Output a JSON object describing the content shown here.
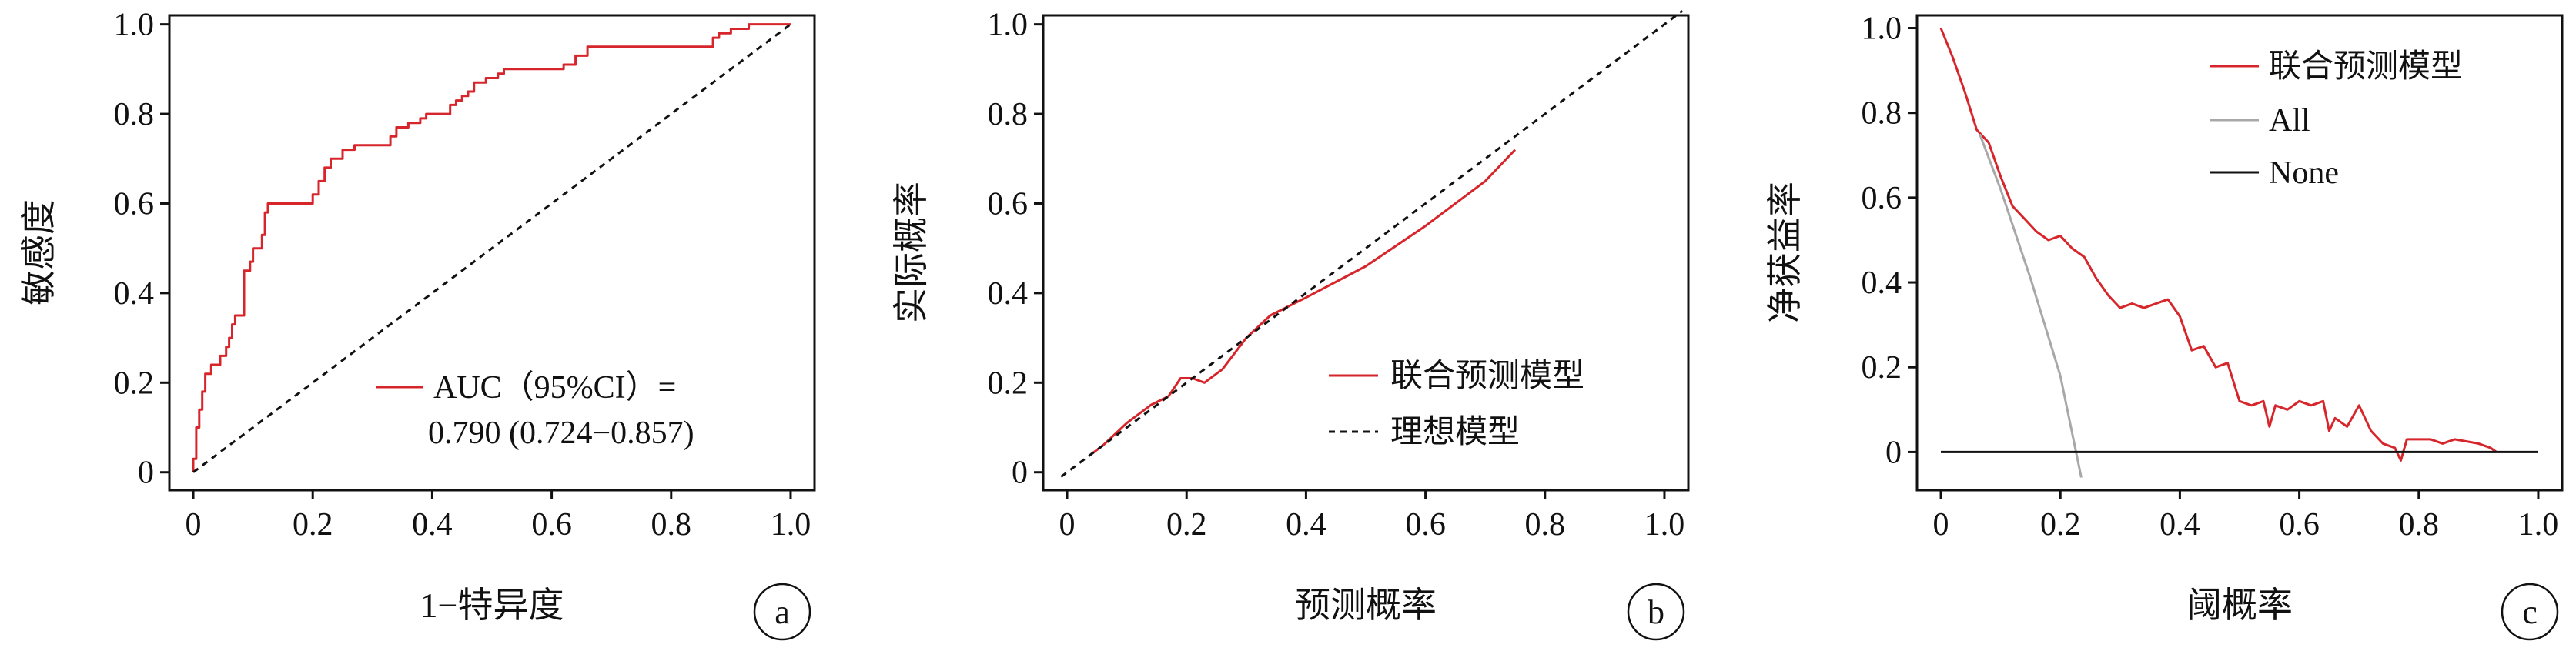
{
  "colors": {
    "model": "#d7262b",
    "all": "#a8a8a8",
    "none": "#111111",
    "ideal": "#111111",
    "axis": "#111111"
  },
  "chart_data": [
    {
      "panel_label": "a",
      "type": "line",
      "xlabel": "1−特异度",
      "ylabel": "敏感度",
      "xlim": [
        -0.04,
        1.04
      ],
      "ylim": [
        -0.04,
        1.02
      ],
      "xticks": [
        "0",
        "0.2",
        "0.4",
        "0.6",
        "0.8",
        "1.0"
      ],
      "xtick_values": [
        0,
        0.2,
        0.4,
        0.6,
        0.8,
        1.0
      ],
      "yticks": [
        "0",
        "0.2",
        "0.4",
        "0.6",
        "0.8",
        "1.0"
      ],
      "ytick_values": [
        0,
        0.2,
        0.4,
        0.6,
        0.8,
        1.0
      ],
      "grid": false,
      "legend": {
        "position": "bottom-right",
        "lines": [
          "AUC（95%CI）=",
          "0.790 (0.724−0.857)"
        ]
      },
      "series": [
        {
          "role": "model",
          "style": "step",
          "points": [
            [
              0,
              0
            ],
            [
              0,
              0.03
            ],
            [
              0.005,
              0.03
            ],
            [
              0.005,
              0.1
            ],
            [
              0.01,
              0.1
            ],
            [
              0.01,
              0.14
            ],
            [
              0.015,
              0.14
            ],
            [
              0.015,
              0.18
            ],
            [
              0.02,
              0.18
            ],
            [
              0.02,
              0.22
            ],
            [
              0.03,
              0.22
            ],
            [
              0.03,
              0.24
            ],
            [
              0.045,
              0.24
            ],
            [
              0.045,
              0.26
            ],
            [
              0.055,
              0.26
            ],
            [
              0.055,
              0.28
            ],
            [
              0.06,
              0.28
            ],
            [
              0.06,
              0.3
            ],
            [
              0.065,
              0.3
            ],
            [
              0.065,
              0.33
            ],
            [
              0.07,
              0.33
            ],
            [
              0.07,
              0.35
            ],
            [
              0.085,
              0.35
            ],
            [
              0.085,
              0.45
            ],
            [
              0.095,
              0.45
            ],
            [
              0.095,
              0.47
            ],
            [
              0.1,
              0.47
            ],
            [
              0.1,
              0.5
            ],
            [
              0.115,
              0.5
            ],
            [
              0.115,
              0.53
            ],
            [
              0.12,
              0.53
            ],
            [
              0.12,
              0.58
            ],
            [
              0.125,
              0.58
            ],
            [
              0.125,
              0.6
            ],
            [
              0.2,
              0.6
            ],
            [
              0.2,
              0.62
            ],
            [
              0.21,
              0.62
            ],
            [
              0.21,
              0.65
            ],
            [
              0.22,
              0.65
            ],
            [
              0.22,
              0.68
            ],
            [
              0.23,
              0.68
            ],
            [
              0.23,
              0.7
            ],
            [
              0.25,
              0.7
            ],
            [
              0.25,
              0.72
            ],
            [
              0.27,
              0.72
            ],
            [
              0.27,
              0.73
            ],
            [
              0.33,
              0.73
            ],
            [
              0.33,
              0.75
            ],
            [
              0.34,
              0.75
            ],
            [
              0.34,
              0.77
            ],
            [
              0.36,
              0.77
            ],
            [
              0.36,
              0.78
            ],
            [
              0.38,
              0.78
            ],
            [
              0.38,
              0.79
            ],
            [
              0.39,
              0.79
            ],
            [
              0.39,
              0.8
            ],
            [
              0.43,
              0.8
            ],
            [
              0.43,
              0.82
            ],
            [
              0.44,
              0.82
            ],
            [
              0.44,
              0.83
            ],
            [
              0.45,
              0.83
            ],
            [
              0.45,
              0.84
            ],
            [
              0.46,
              0.84
            ],
            [
              0.46,
              0.85
            ],
            [
              0.47,
              0.85
            ],
            [
              0.47,
              0.87
            ],
            [
              0.49,
              0.87
            ],
            [
              0.49,
              0.88
            ],
            [
              0.51,
              0.88
            ],
            [
              0.51,
              0.89
            ],
            [
              0.52,
              0.89
            ],
            [
              0.52,
              0.9
            ],
            [
              0.62,
              0.9
            ],
            [
              0.62,
              0.91
            ],
            [
              0.64,
              0.91
            ],
            [
              0.64,
              0.93
            ],
            [
              0.66,
              0.93
            ],
            [
              0.66,
              0.95
            ],
            [
              0.87,
              0.95
            ],
            [
              0.87,
              0.97
            ],
            [
              0.88,
              0.97
            ],
            [
              0.88,
              0.98
            ],
            [
              0.9,
              0.98
            ],
            [
              0.9,
              0.99
            ],
            [
              0.93,
              0.99
            ],
            [
              0.93,
              1.0
            ],
            [
              1.0,
              1.0
            ]
          ]
        },
        {
          "role": "ideal",
          "style": "dashed",
          "points": [
            [
              0,
              0
            ],
            [
              1,
              1
            ]
          ]
        }
      ]
    },
    {
      "panel_label": "b",
      "type": "line",
      "xlabel": "预测概率",
      "ylabel": "实际概率",
      "xlim": [
        -0.04,
        1.04
      ],
      "ylim": [
        -0.04,
        1.02
      ],
      "xticks": [
        "0",
        "0.2",
        "0.4",
        "0.6",
        "0.8",
        "1.0"
      ],
      "xtick_values": [
        0,
        0.2,
        0.4,
        0.6,
        0.8,
        1.0
      ],
      "yticks": [
        "0",
        "0.2",
        "0.4",
        "0.6",
        "0.8",
        "1.0"
      ],
      "ytick_values": [
        0,
        0.2,
        0.4,
        0.6,
        0.8,
        1.0
      ],
      "grid": false,
      "legend": {
        "position": "bottom-right"
      },
      "series": [
        {
          "name": "联合预测模型",
          "role": "model",
          "style": "solid",
          "points": [
            [
              0.04,
              0.04
            ],
            [
              0.06,
              0.06
            ],
            [
              0.1,
              0.11
            ],
            [
              0.14,
              0.15
            ],
            [
              0.17,
              0.17
            ],
            [
              0.19,
              0.21
            ],
            [
              0.21,
              0.21
            ],
            [
              0.23,
              0.2
            ],
            [
              0.26,
              0.23
            ],
            [
              0.3,
              0.3
            ],
            [
              0.34,
              0.35
            ],
            [
              0.4,
              0.39
            ],
            [
              0.5,
              0.46
            ],
            [
              0.6,
              0.55
            ],
            [
              0.7,
              0.65
            ],
            [
              0.75,
              0.72
            ]
          ]
        },
        {
          "name": "理想模型",
          "role": "ideal",
          "style": "dashed",
          "points": [
            [
              -0.01,
              -0.01
            ],
            [
              1.03,
              1.03
            ]
          ]
        }
      ]
    },
    {
      "panel_label": "c",
      "type": "line",
      "xlabel": "阈概率",
      "ylabel": "净获益率",
      "xlim": [
        -0.04,
        1.04
      ],
      "ylim": [
        -0.09,
        1.03
      ],
      "xticks": [
        "0",
        "0.2",
        "0.4",
        "0.6",
        "0.8",
        "1.0"
      ],
      "xtick_values": [
        0,
        0.2,
        0.4,
        0.6,
        0.8,
        1.0
      ],
      "yticks": [
        "0",
        "0.2",
        "0.4",
        "0.6",
        "0.8",
        "1.0"
      ],
      "ytick_values": [
        0,
        0.2,
        0.4,
        0.6,
        0.8,
        1.0
      ],
      "grid": false,
      "legend": {
        "position": "top-right"
      },
      "series": [
        {
          "name": "联合预测模型",
          "role": "model",
          "style": "solid",
          "points": [
            [
              0,
              1.0
            ],
            [
              0.02,
              0.93
            ],
            [
              0.04,
              0.85
            ],
            [
              0.06,
              0.76
            ],
            [
              0.08,
              0.73
            ],
            [
              0.1,
              0.65
            ],
            [
              0.12,
              0.58
            ],
            [
              0.14,
              0.55
            ],
            [
              0.16,
              0.52
            ],
            [
              0.18,
              0.5
            ],
            [
              0.2,
              0.51
            ],
            [
              0.22,
              0.48
            ],
            [
              0.24,
              0.46
            ],
            [
              0.26,
              0.41
            ],
            [
              0.28,
              0.37
            ],
            [
              0.3,
              0.34
            ],
            [
              0.32,
              0.35
            ],
            [
              0.34,
              0.34
            ],
            [
              0.36,
              0.35
            ],
            [
              0.38,
              0.36
            ],
            [
              0.4,
              0.32
            ],
            [
              0.42,
              0.24
            ],
            [
              0.44,
              0.25
            ],
            [
              0.46,
              0.2
            ],
            [
              0.48,
              0.21
            ],
            [
              0.5,
              0.12
            ],
            [
              0.52,
              0.11
            ],
            [
              0.54,
              0.12
            ],
            [
              0.55,
              0.06
            ],
            [
              0.56,
              0.11
            ],
            [
              0.58,
              0.1
            ],
            [
              0.6,
              0.12
            ],
            [
              0.62,
              0.11
            ],
            [
              0.64,
              0.12
            ],
            [
              0.65,
              0.05
            ],
            [
              0.66,
              0.08
            ],
            [
              0.68,
              0.06
            ],
            [
              0.7,
              0.11
            ],
            [
              0.72,
              0.05
            ],
            [
              0.74,
              0.02
            ],
            [
              0.76,
              0.01
            ],
            [
              0.77,
              -0.02
            ],
            [
              0.78,
              0.03
            ],
            [
              0.82,
              0.03
            ],
            [
              0.84,
              0.02
            ],
            [
              0.86,
              0.03
            ],
            [
              0.9,
              0.02
            ],
            [
              0.92,
              0.01
            ],
            [
              0.93,
              0.0
            ]
          ]
        },
        {
          "name": "All",
          "role": "all",
          "style": "solid",
          "points": [
            [
              0.065,
              0.75
            ],
            [
              0.1,
              0.62
            ],
            [
              0.15,
              0.41
            ],
            [
              0.2,
              0.18
            ],
            [
              0.235,
              -0.06
            ]
          ]
        },
        {
          "name": "None",
          "role": "none",
          "style": "solid",
          "points": [
            [
              0,
              0
            ],
            [
              1,
              0
            ]
          ]
        }
      ]
    }
  ]
}
